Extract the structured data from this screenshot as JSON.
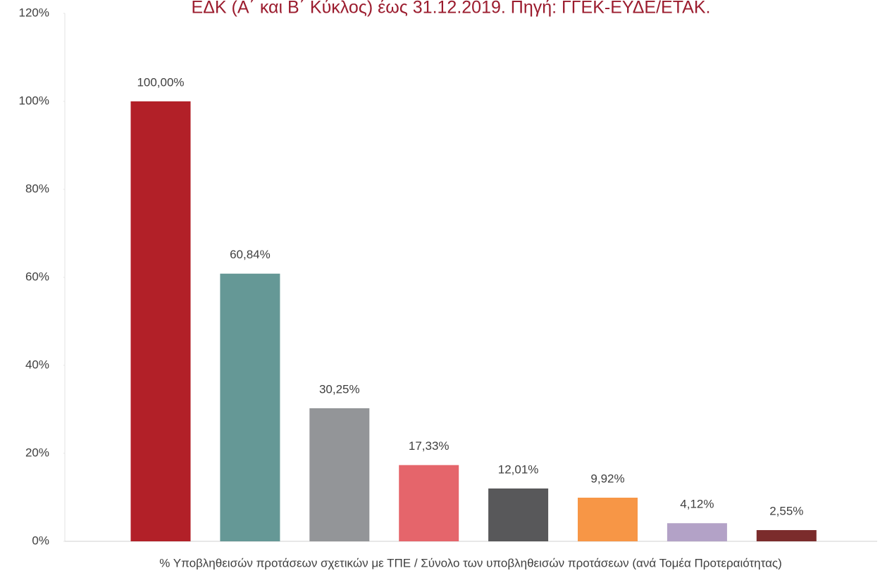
{
  "chart_data": {
    "type": "bar",
    "title": "ΕΔΚ (Α΄ και Β΄ Κύκλος) έως 31.12.2019. Πηγή: ΓΓΕΚ-ΕΥΔΕ/ΕΤΑΚ.",
    "x_label": "% Υποβληθεισών προτάσεων σχετικών με ΤΠΕ  / Σύνολο των υποβληθεισών προτάσεων (ανά Τομέα Προτεραιότητας)",
    "categories": [
      null,
      null,
      null,
      null,
      null,
      null,
      null,
      null
    ],
    "values": [
      100,
      60.84,
      30.25,
      17.33,
      12.01,
      9.92,
      4.12,
      2.55
    ],
    "value_labels": [
      "100,00%",
      "60,84%",
      "30,25%",
      "17,33%",
      "12,01%",
      "9,92%",
      "4,12%",
      "2,55%"
    ],
    "colors": [
      "#b22028",
      "#659896",
      "#939598",
      "#e5656b",
      "#58585a",
      "#f79646",
      "#b3a2c7",
      "#7b2c2c"
    ],
    "ylim": [
      0,
      120
    ],
    "yticks": [
      {
        "value": 0,
        "label": "0%"
      },
      {
        "value": 20,
        "label": "20%"
      },
      {
        "value": 40,
        "label": "40%"
      },
      {
        "value": 60,
        "label": "60%"
      },
      {
        "value": 80,
        "label": "80%"
      },
      {
        "value": 100,
        "label": "100%"
      },
      {
        "value": 120,
        "label": "120%"
      }
    ],
    "grid": false
  }
}
